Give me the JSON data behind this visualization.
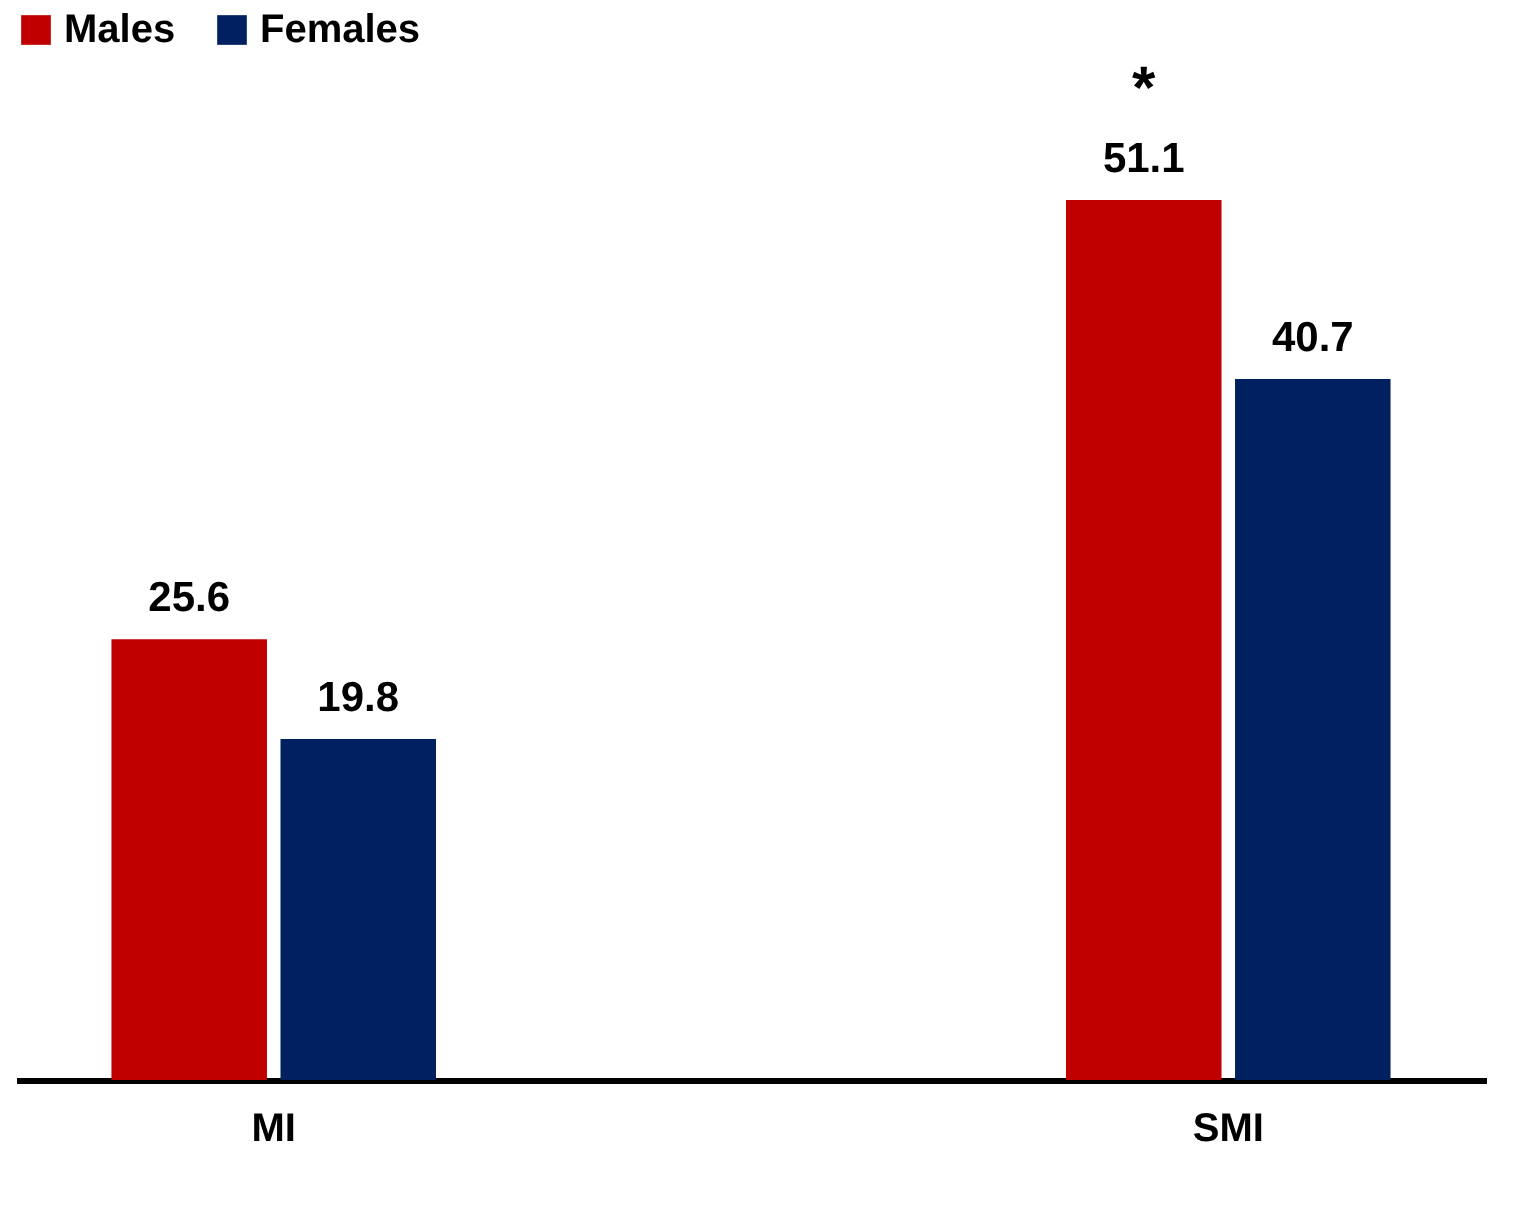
{
  "chart_data": {
    "type": "bar",
    "categories": [
      "MI",
      "SMI"
    ],
    "series": [
      {
        "name": "Males",
        "color": "#c00000",
        "values": [
          25.6,
          51.1
        ]
      },
      {
        "name": "Females",
        "color": "#002060",
        "values": [
          19.8,
          40.7
        ]
      }
    ],
    "data_labels": true,
    "legend": "top",
    "annotations": [
      {
        "text": "*",
        "x": "SMI",
        "y": 51.1
      }
    ]
  }
}
